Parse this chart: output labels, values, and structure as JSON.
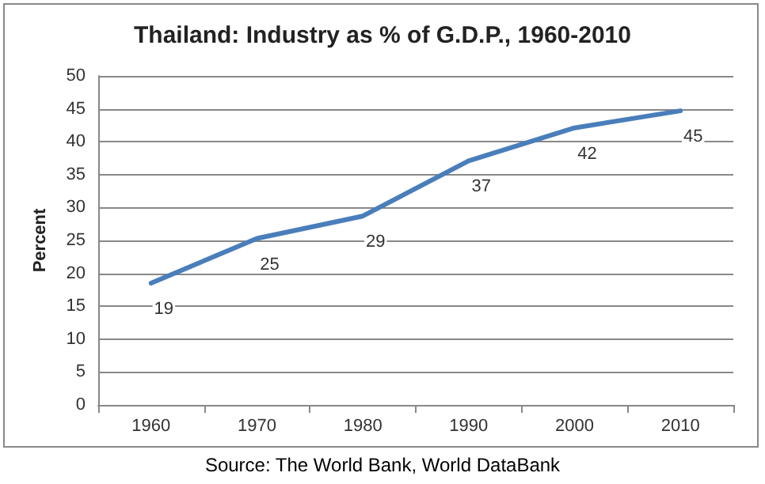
{
  "chart_data": {
    "type": "line",
    "title": "Thailand: Industry as % of G.D.P., 1960-2010",
    "ylabel": "Percent",
    "annotations": [
      "Source: The World Bank, World DataBank"
    ],
    "categories": [
      "1960",
      "1970",
      "1980",
      "1990",
      "2000",
      "2010"
    ],
    "series": [
      {
        "color": "#4a7ebb",
        "values": [
          18.5,
          25.3,
          28.7,
          37.1,
          42.1,
          44.7
        ],
        "value_labels": [
          "19",
          "25",
          "29",
          "37",
          "42",
          "45"
        ]
      }
    ],
    "ylim": [
      0,
      50
    ],
    "yticks": [
      0,
      5,
      10,
      15,
      20,
      25,
      30,
      35,
      40,
      45,
      50
    ],
    "grid": "y",
    "marker": "none",
    "line_style": "solid"
  }
}
